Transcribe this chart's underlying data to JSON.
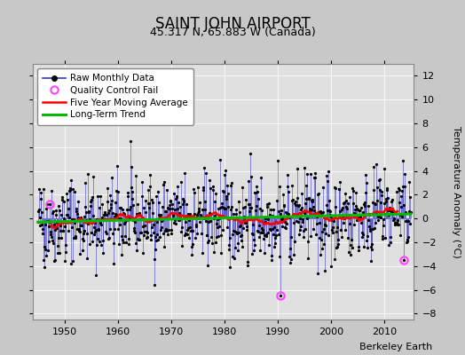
{
  "title": "SAINT JOHN AIRPORT",
  "subtitle": "45.317 N, 65.883 W (Canada)",
  "ylabel": "Temperature Anomaly (°C)",
  "watermark": "Berkeley Earth",
  "start_year": 1945,
  "end_year": 2014,
  "ylim": [
    -8.5,
    13
  ],
  "yticks": [
    -8,
    -6,
    -4,
    -2,
    0,
    2,
    4,
    6,
    8,
    10,
    12
  ],
  "xticks": [
    1950,
    1960,
    1970,
    1980,
    1990,
    2000,
    2010
  ],
  "bg_color": "#c8c8c8",
  "plot_bg_color": "#e0e0e0",
  "raw_line_color": "#3333cc",
  "raw_dot_color": "#000000",
  "qc_fail_color": "#ff44ff",
  "moving_avg_color": "#ff0000",
  "trend_color": "#00bb00",
  "seed": 42,
  "xlim": [
    1944,
    2015.5
  ]
}
